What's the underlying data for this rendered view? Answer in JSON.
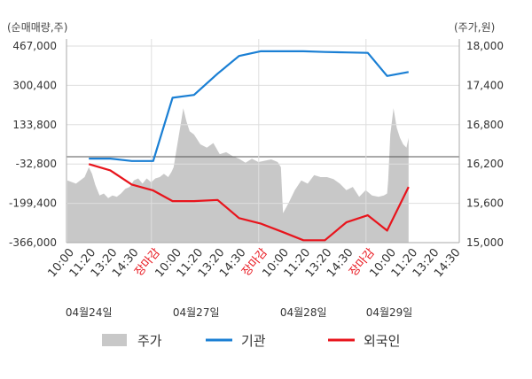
{
  "chart_data": {
    "type": "line",
    "units": {
      "left": "(순매매량,주)",
      "right": "(주가,원)"
    },
    "left_axis": {
      "ticks": [
        "467,000",
        "300,400",
        "133,800",
        "-32,800",
        "-199,400",
        "-366,000"
      ],
      "range": [
        -366000,
        467000
      ]
    },
    "right_axis": {
      "ticks": [
        "18,000",
        "17,400",
        "16,800",
        "16,200",
        "15,600",
        "15,000"
      ],
      "range": [
        15000,
        18000
      ]
    },
    "x_ticks": [
      "10:00",
      "11:20",
      "13:20",
      "14:30",
      "장마감",
      "10:00",
      "11:20",
      "13:20",
      "14:30",
      "장마감",
      "10:00",
      "11:20",
      "13:20",
      "14:30",
      "장마감",
      "10:00",
      "11:20",
      "13:20",
      "14:30"
    ],
    "dates": [
      "04월24일",
      "04월27일",
      "04월28일",
      "04월29일"
    ],
    "legend": [
      {
        "label": "주가",
        "color": "#c8c8c8"
      },
      {
        "label": "기관",
        "color": "#1a7fd4"
      },
      {
        "label": "외국인",
        "color": "#e8141c"
      }
    ],
    "series": [
      {
        "name": "기관",
        "axis": "left",
        "x": [
          1,
          2,
          3,
          4,
          4.9,
          5.9,
          7,
          8,
          9,
          10,
          11,
          12,
          13,
          14,
          14.9,
          15.9
        ],
        "values": [
          -10000,
          -10000,
          -20000,
          -20000,
          248000,
          260000,
          350000,
          425000,
          445000,
          445000,
          445000,
          442000,
          440000,
          438000,
          340000,
          357000
        ]
      },
      {
        "name": "외국인",
        "axis": "left",
        "x": [
          1,
          2,
          3,
          4,
          4.9,
          5.9,
          7,
          8,
          9,
          10,
          11,
          12,
          13,
          14,
          14.9,
          15.9
        ],
        "values": [
          -33000,
          -60000,
          -120000,
          -145000,
          -190000,
          -190000,
          -185000,
          -262000,
          -285000,
          -320000,
          -356000,
          -356000,
          -280000,
          -250000,
          -315000,
          -130000
        ]
      },
      {
        "name": "주가",
        "axis": "right",
        "type": "area",
        "x": [
          0,
          0.4,
          0.8,
          1.0,
          1.15,
          1.3,
          1.5,
          1.7,
          1.9,
          2.1,
          2.3,
          2.5,
          2.7,
          2.9,
          3.1,
          3.3,
          3.5,
          3.7,
          3.9,
          4.1,
          4.3,
          4.5,
          4.7,
          4.85,
          4.95,
          5.1,
          5.25,
          5.4,
          5.55,
          5.7,
          5.9,
          6.2,
          6.5,
          6.8,
          7.1,
          7.4,
          7.7,
          8.0,
          8.3,
          8.6,
          8.9,
          9.2,
          9.5,
          9.8,
          9.95,
          10.05,
          10.3,
          10.6,
          10.9,
          11.2,
          11.5,
          11.8,
          12.1,
          12.4,
          12.7,
          13.0,
          13.3,
          13.6,
          13.9,
          14.2,
          14.5,
          14.75,
          14.9,
          14.95,
          15.05,
          15.2,
          15.35,
          15.5,
          15.65,
          15.8,
          15.9
        ],
        "values": [
          15950,
          15900,
          16000,
          16150,
          16050,
          15880,
          15720,
          15750,
          15680,
          15720,
          15700,
          15750,
          15820,
          15850,
          15950,
          15980,
          15900,
          15980,
          15920,
          15980,
          16000,
          16050,
          16000,
          16080,
          16150,
          16450,
          16750,
          17050,
          16850,
          16700,
          16650,
          16500,
          16450,
          16520,
          16350,
          16380,
          16320,
          16280,
          16220,
          16280,
          16230,
          16250,
          16270,
          16230,
          16150,
          15450,
          15600,
          15800,
          15950,
          15900,
          16030,
          16000,
          16000,
          15970,
          15900,
          15800,
          15850,
          15700,
          15800,
          15720,
          15700,
          15720,
          15750,
          15950,
          16650,
          17050,
          16750,
          16600,
          16500,
          16450,
          16600
        ]
      }
    ]
  }
}
